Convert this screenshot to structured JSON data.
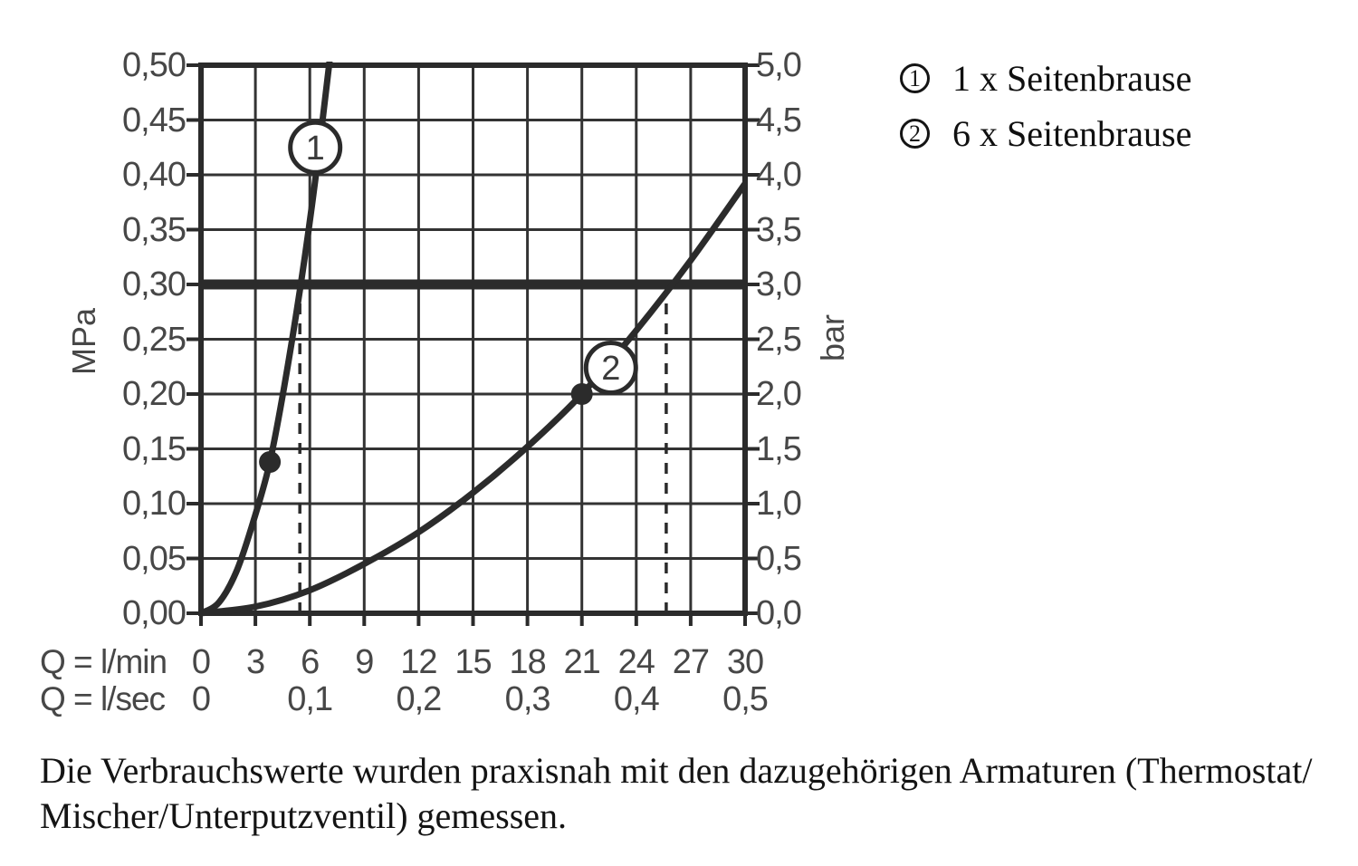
{
  "page": {
    "background": "#ffffff",
    "ink_color": "#2b2b2b",
    "grid_color": "#333333",
    "tick_label_color": "#474747"
  },
  "chart_data": {
    "type": "line",
    "title": "",
    "description": "Pressure loss / flow diagram with two curves",
    "axes": {
      "left": {
        "unit": "MPa",
        "min": 0,
        "max": 0.5,
        "step": 0.05,
        "ticks": [
          "0,00",
          "0,05",
          "0,10",
          "0,15",
          "0,20",
          "0,25",
          "0,30",
          "0,35",
          "0,40",
          "0,45",
          "0,50"
        ]
      },
      "right": {
        "unit": "bar",
        "min": 0,
        "max": 5,
        "step": 0.5,
        "ticks": [
          "0,0",
          "0,5",
          "1,0",
          "1,5",
          "2,0",
          "2,5",
          "3,0",
          "3,5",
          "4,0",
          "4,5",
          "5,0"
        ]
      },
      "bottom_lmin": {
        "label": "Q = l/min",
        "min": 0,
        "max": 30,
        "step": 3,
        "ticks": [
          "0",
          "3",
          "6",
          "9",
          "12",
          "15",
          "18",
          "21",
          "24",
          "27",
          "30"
        ]
      },
      "bottom_lsec": {
        "label": "Q = l/sec",
        "ticks": [
          {
            "at_lmin": 0,
            "label": "0"
          },
          {
            "at_lmin": 6,
            "label": "0,1"
          },
          {
            "at_lmin": 12,
            "label": "0,2"
          },
          {
            "at_lmin": 18,
            "label": "0,3"
          },
          {
            "at_lmin": 24,
            "label": "0,4"
          },
          {
            "at_lmin": 30,
            "label": "0,5"
          }
        ]
      }
    },
    "grid": {
      "x_step_lmin": 3,
      "y_step_mpa": 0.05
    },
    "reference_line": {
      "pressure_mpa": 0.3,
      "pressure_bar": 3.0
    },
    "series": [
      {
        "id": "1",
        "name": "1 x Seitenbrause",
        "points_q_lmin_p_mpa": [
          [
            0,
            0
          ],
          [
            1,
            0.01
          ],
          [
            2,
            0.04
          ],
          [
            3,
            0.09
          ],
          [
            3.8,
            0.138
          ],
          [
            4.6,
            0.208
          ],
          [
            5.5,
            0.3
          ],
          [
            6.3,
            0.395
          ],
          [
            7.1,
            0.505
          ]
        ],
        "marker_point": {
          "q_lmin": 3.8,
          "p_mpa": 0.138
        },
        "label_badge": {
          "text": "1",
          "q_lmin": 6.3,
          "p_mpa": 0.425
        },
        "dashed_guide_q_lmin": 5.45
      },
      {
        "id": "2",
        "name": "6 x Seitenbrause",
        "points_q_lmin_p_mpa": [
          [
            0,
            0
          ],
          [
            3,
            0.006
          ],
          [
            6,
            0.021
          ],
          [
            9,
            0.045
          ],
          [
            12,
            0.074
          ],
          [
            15,
            0.11
          ],
          [
            18,
            0.152
          ],
          [
            21,
            0.2
          ],
          [
            24,
            0.258
          ],
          [
            27,
            0.322
          ],
          [
            30,
            0.392
          ]
        ],
        "marker_point": {
          "q_lmin": 21,
          "p_mpa": 0.2
        },
        "label_badge": {
          "text": "2",
          "q_lmin": 22.6,
          "p_mpa": 0.224
        },
        "dashed_guide_q_lmin": 25.65
      }
    ],
    "legend": {
      "items": [
        {
          "num": "1",
          "label": "1 x Seitenbrause"
        },
        {
          "num": "2",
          "label": "6 x Seitenbrause"
        }
      ]
    }
  },
  "footnote": {
    "lines": [
      "Die Verbrauchswerte wurden praxisnah mit den dazugehörigen Armaturen (Thermostat/",
      "Mischer/Unterputzventil) gemessen."
    ]
  }
}
